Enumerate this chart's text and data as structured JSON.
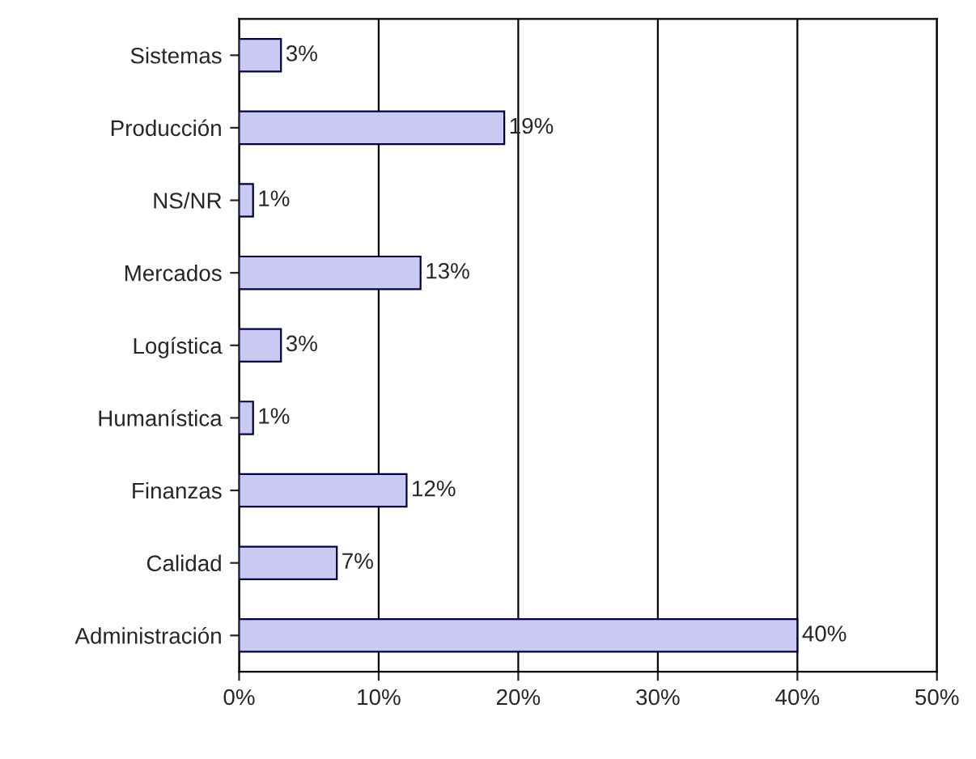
{
  "chart_data": {
    "type": "bar",
    "orientation": "horizontal",
    "categories": [
      "Sistemas",
      "Producción",
      "NS/NR",
      "Mercados",
      "Logística",
      "Humanística",
      "Finanzas",
      "Calidad",
      "Administración"
    ],
    "values": [
      3,
      19,
      1,
      13,
      3,
      1,
      12,
      7,
      40
    ],
    "value_labels": [
      "3%",
      "19%",
      "1%",
      "13%",
      "3%",
      "1%",
      "12%",
      "7%",
      "40%"
    ],
    "color": "#c9c9f2",
    "xlim": [
      0,
      50
    ],
    "xticks": [
      {
        "value": 0,
        "label": "0%"
      },
      {
        "value": 10,
        "label": "10%"
      },
      {
        "value": 20,
        "label": "20%"
      },
      {
        "value": 30,
        "label": "30%"
      },
      {
        "value": 40,
        "label": "40%"
      },
      {
        "value": 50,
        "label": "50%"
      }
    ],
    "grid": "x",
    "legend": false
  }
}
